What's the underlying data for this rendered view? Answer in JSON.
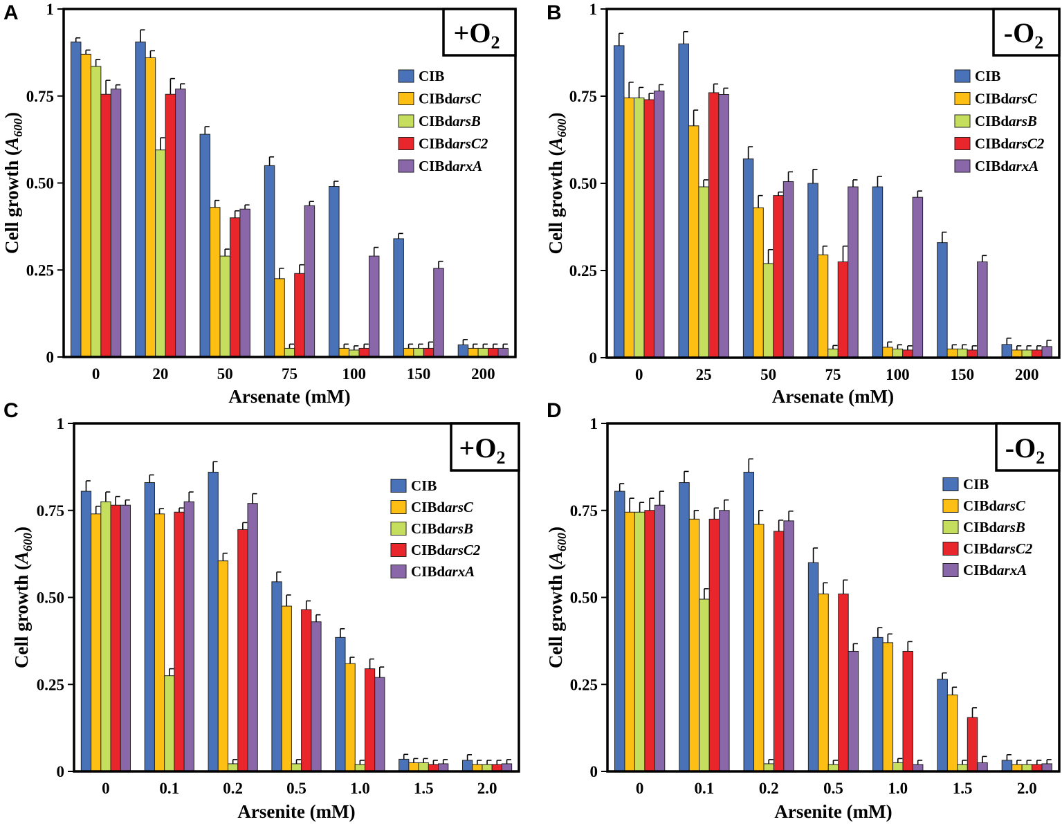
{
  "legend": {
    "entries": [
      {
        "prefix": "CIB",
        "italic": ""
      },
      {
        "prefix": "CIBd",
        "italic": "arsC"
      },
      {
        "prefix": "CIBd",
        "italic": "arsB"
      },
      {
        "prefix": "CIBd",
        "italic": "arsC2"
      },
      {
        "prefix": "CIBd",
        "italic": "arxA"
      }
    ]
  },
  "colors": {
    "series": [
      "#4a72b8",
      "#fdbf13",
      "#c6de5e",
      "#e8262b",
      "#8a67a8"
    ],
    "bar_edge": "#222222"
  },
  "chart_data": [
    {
      "panel": "A",
      "type": "bar",
      "condition": {
        "sign": "+",
        "base": "O",
        "sub": "2"
      },
      "ylabel": {
        "main": "Cell growth (",
        "italic": "A",
        "sub": "600",
        "close": ")"
      },
      "xlabel": "Arsenate (mM)",
      "ylim": [
        0,
        1
      ],
      "yticks": [
        "0",
        "0.25",
        "0.50",
        "0.75",
        "1"
      ],
      "categories": [
        "0",
        "20",
        "50",
        "75",
        "100",
        "150",
        "200"
      ],
      "series": [
        {
          "name": "CIB",
          "values": [
            0.905,
            0.905,
            0.64,
            0.55,
            0.49,
            0.34,
            0.035
          ],
          "errors": [
            0.012,
            0.035,
            0.022,
            0.025,
            0.015,
            0.015,
            0.015
          ]
        },
        {
          "name": "CIBdarsC",
          "values": [
            0.87,
            0.86,
            0.43,
            0.225,
            0.025,
            0.025,
            0.025
          ],
          "errors": [
            0.012,
            0.02,
            0.02,
            0.03,
            0.012,
            0.012,
            0.012
          ]
        },
        {
          "name": "CIBdarsB",
          "values": [
            0.835,
            0.595,
            0.29,
            0.025,
            0.02,
            0.025,
            0.025
          ],
          "errors": [
            0.02,
            0.035,
            0.02,
            0.012,
            0.012,
            0.012,
            0.012
          ]
        },
        {
          "name": "CIBdarsC2",
          "values": [
            0.755,
            0.755,
            0.4,
            0.24,
            0.025,
            0.025,
            0.025
          ],
          "errors": [
            0.04,
            0.045,
            0.02,
            0.025,
            0.012,
            0.018,
            0.012
          ]
        },
        {
          "name": "CIBdarxA",
          "values": [
            0.77,
            0.77,
            0.425,
            0.435,
            0.29,
            0.255,
            0.025
          ],
          "errors": [
            0.012,
            0.015,
            0.012,
            0.012,
            0.025,
            0.02,
            0.012
          ]
        }
      ]
    },
    {
      "panel": "B",
      "type": "bar",
      "condition": {
        "sign": "-",
        "base": "O",
        "sub": "2"
      },
      "ylabel": {
        "main": "Cell growth (",
        "italic": "A",
        "sub": "600",
        "close": ")"
      },
      "xlabel": "Arsenate (mM)",
      "ylim": [
        0,
        1
      ],
      "yticks": [
        "0",
        "0.25",
        "0.50",
        "0.75",
        "1"
      ],
      "categories": [
        "0",
        "25",
        "50",
        "75",
        "100",
        "150",
        "200"
      ],
      "series": [
        {
          "name": "CIB",
          "values": [
            0.895,
            0.9,
            0.57,
            0.5,
            0.49,
            0.33,
            0.038
          ],
          "errors": [
            0.035,
            0.035,
            0.035,
            0.04,
            0.03,
            0.03,
            0.018
          ]
        },
        {
          "name": "CIBdarsC",
          "values": [
            0.745,
            0.665,
            0.43,
            0.295,
            0.03,
            0.025,
            0.022
          ],
          "errors": [
            0.045,
            0.045,
            0.035,
            0.025,
            0.015,
            0.012,
            0.012
          ]
        },
        {
          "name": "CIBdarsB",
          "values": [
            0.745,
            0.49,
            0.27,
            0.025,
            0.025,
            0.025,
            0.022
          ],
          "errors": [
            0.03,
            0.02,
            0.04,
            0.01,
            0.012,
            0.012,
            0.012
          ]
        },
        {
          "name": "CIBdarsC2",
          "values": [
            0.74,
            0.76,
            0.465,
            0.275,
            0.022,
            0.022,
            0.022
          ],
          "errors": [
            0.018,
            0.025,
            0.01,
            0.045,
            0.012,
            0.012,
            0.012
          ]
        },
        {
          "name": "CIBdarxA",
          "values": [
            0.765,
            0.755,
            0.505,
            0.49,
            0.46,
            0.275,
            0.032
          ],
          "errors": [
            0.018,
            0.018,
            0.028,
            0.02,
            0.018,
            0.018,
            0.018
          ]
        }
      ]
    },
    {
      "panel": "C",
      "type": "bar",
      "condition": {
        "sign": "+",
        "base": "O",
        "sub": "2"
      },
      "ylabel": {
        "main": "Cell growth (",
        "italic": "A",
        "sub": "600",
        "close": ")"
      },
      "xlabel": "Arsenite (mM)",
      "ylim": [
        0,
        1
      ],
      "yticks": [
        "0",
        "0.25",
        "0.50",
        "0.75",
        "1"
      ],
      "categories": [
        "0",
        "0.1",
        "0.2",
        "0.5",
        "1.0",
        "1.5",
        "2.0"
      ],
      "series": [
        {
          "name": "CIB",
          "values": [
            0.805,
            0.83,
            0.86,
            0.545,
            0.385,
            0.035,
            0.032
          ],
          "errors": [
            0.03,
            0.022,
            0.03,
            0.028,
            0.025,
            0.014,
            0.016
          ]
        },
        {
          "name": "CIBdarsC",
          "values": [
            0.74,
            0.74,
            0.605,
            0.475,
            0.31,
            0.025,
            0.02
          ],
          "errors": [
            0.022,
            0.015,
            0.022,
            0.032,
            0.018,
            0.012,
            0.012
          ]
        },
        {
          "name": "CIBdarsB",
          "values": [
            0.775,
            0.275,
            0.022,
            0.022,
            0.02,
            0.025,
            0.02
          ],
          "errors": [
            0.028,
            0.02,
            0.012,
            0.012,
            0.012,
            0.012,
            0.012
          ]
        },
        {
          "name": "CIBdarsC2",
          "values": [
            0.765,
            0.745,
            0.695,
            0.465,
            0.295,
            0.02,
            0.02
          ],
          "errors": [
            0.025,
            0.012,
            0.02,
            0.025,
            0.028,
            0.012,
            0.012
          ]
        },
        {
          "name": "CIBdarxA",
          "values": [
            0.765,
            0.775,
            0.77,
            0.43,
            0.27,
            0.022,
            0.022
          ],
          "errors": [
            0.015,
            0.028,
            0.028,
            0.02,
            0.03,
            0.012,
            0.012
          ]
        }
      ]
    },
    {
      "panel": "D",
      "type": "bar",
      "condition": {
        "sign": "-",
        "base": "O",
        "sub": "2"
      },
      "ylabel": {
        "main": "Cell growth (",
        "italic": "A",
        "sub": "600",
        "close": ")"
      },
      "xlabel": "Arsenite (mM)",
      "ylim": [
        0,
        1
      ],
      "yticks": [
        "0",
        "0.25",
        "0.50",
        "0.75",
        "1"
      ],
      "categories": [
        "0",
        "0.1",
        "0.2",
        "0.5",
        "1.0",
        "1.5",
        "2.0"
      ],
      "series": [
        {
          "name": "CIB",
          "values": [
            0.805,
            0.83,
            0.86,
            0.6,
            0.385,
            0.265,
            0.032
          ],
          "errors": [
            0.022,
            0.032,
            0.038,
            0.042,
            0.028,
            0.018,
            0.016
          ]
        },
        {
          "name": "CIBdarsC",
          "values": [
            0.745,
            0.725,
            0.71,
            0.51,
            0.37,
            0.22,
            0.02
          ],
          "errors": [
            0.04,
            0.025,
            0.04,
            0.032,
            0.025,
            0.022,
            0.012
          ]
        },
        {
          "name": "CIBdarsB",
          "values": [
            0.745,
            0.495,
            0.022,
            0.02,
            0.025,
            0.02,
            0.02
          ],
          "errors": [
            0.028,
            0.03,
            0.012,
            0.012,
            0.012,
            0.012,
            0.012
          ]
        },
        {
          "name": "CIBdarsC2",
          "values": [
            0.75,
            0.725,
            0.69,
            0.51,
            0.345,
            0.155,
            0.02
          ],
          "errors": [
            0.035,
            0.032,
            0.032,
            0.04,
            0.028,
            0.028,
            0.012
          ]
        },
        {
          "name": "CIBdarxA",
          "values": [
            0.765,
            0.75,
            0.72,
            0.345,
            0.02,
            0.025,
            0.022
          ],
          "errors": [
            0.04,
            0.03,
            0.028,
            0.022,
            0.012,
            0.018,
            0.012
          ]
        }
      ]
    }
  ]
}
